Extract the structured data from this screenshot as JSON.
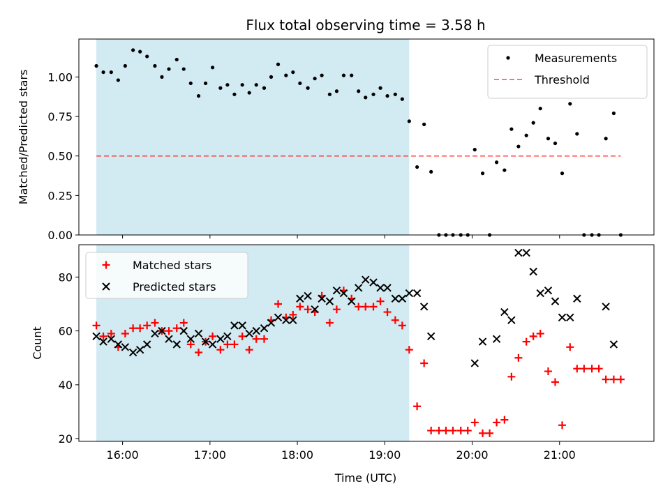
{
  "chart_data": [
    {
      "type": "scatter",
      "title": "Flux total observing time = 3.58 h",
      "xlabel": "",
      "ylabel": "Matched/Predicted stars",
      "xlim_hours": [
        15.5,
        22.08
      ],
      "ylim": [
        0,
        1.24
      ],
      "yticks": [
        0.0,
        0.25,
        0.5,
        0.75,
        1.0
      ],
      "ytick_labels": [
        "0.00",
        "0.25",
        "0.50",
        "0.75",
        "1.00"
      ],
      "shaded_span_hours": [
        15.7,
        19.28
      ],
      "shade_color": "#add8e6",
      "legend_position": "upper-right",
      "series": [
        {
          "name": "Measurements",
          "marker": "dot",
          "color": "#000000",
          "x_hours": [
            15.7,
            15.78,
            15.87,
            15.95,
            16.03,
            16.12,
            16.2,
            16.28,
            16.37,
            16.45,
            16.53,
            16.62,
            16.7,
            16.78,
            16.87,
            16.95,
            17.03,
            17.12,
            17.2,
            17.28,
            17.37,
            17.45,
            17.53,
            17.62,
            17.7,
            17.78,
            17.87,
            17.95,
            18.03,
            18.12,
            18.2,
            18.28,
            18.37,
            18.45,
            18.53,
            18.62,
            18.7,
            18.78,
            18.87,
            18.95,
            19.03,
            19.12,
            19.2,
            19.28,
            19.37,
            19.45,
            19.53,
            19.62,
            19.7,
            19.78,
            19.87,
            19.95,
            20.03,
            20.12,
            20.2,
            20.28,
            20.37,
            20.45,
            20.53,
            20.62,
            20.7,
            20.78,
            20.87,
            20.95,
            21.03,
            21.12,
            21.2,
            21.28,
            21.37,
            21.45,
            21.53,
            21.62,
            21.7
          ],
          "values": [
            1.07,
            1.03,
            1.03,
            0.98,
            1.07,
            1.17,
            1.16,
            1.13,
            1.07,
            1.0,
            1.05,
            1.11,
            1.05,
            0.96,
            0.88,
            0.96,
            1.06,
            0.93,
            0.95,
            0.89,
            0.95,
            0.9,
            0.95,
            0.93,
            1.0,
            1.08,
            1.01,
            1.03,
            0.96,
            0.93,
            0.99,
            1.01,
            0.89,
            0.91,
            1.01,
            1.01,
            0.91,
            0.87,
            0.89,
            0.93,
            0.88,
            0.89,
            0.86,
            0.72,
            0.43,
            0.7,
            0.4,
            0.0,
            0.0,
            0.0,
            0.0,
            0.0,
            0.54,
            0.39,
            0.0,
            0.46,
            0.41,
            0.67,
            0.56,
            0.63,
            0.71,
            0.8,
            0.61,
            0.58,
            0.39,
            0.83,
            0.64,
            0.0,
            0.0,
            0.0,
            0.61,
            0.77,
            0.0
          ]
        },
        {
          "name": "Threshold",
          "marker": "dashed-line",
          "color": "#ff0000",
          "x_hours": [
            15.7,
            21.7
          ],
          "values": [
            0.5,
            0.5
          ]
        }
      ]
    },
    {
      "type": "scatter",
      "title": "",
      "xlabel": "Time (UTC)",
      "ylabel": "Count",
      "xlim_hours": [
        15.5,
        22.08
      ],
      "xticks_hours": [
        16,
        17,
        18,
        19,
        20,
        21
      ],
      "xtick_labels": [
        "16:00",
        "17:00",
        "18:00",
        "19:00",
        "20:00",
        "21:00"
      ],
      "ylim": [
        19,
        92
      ],
      "yticks": [
        20,
        40,
        60,
        80
      ],
      "ytick_labels": [
        "20",
        "40",
        "60",
        "80"
      ],
      "shaded_span_hours": [
        15.7,
        19.28
      ],
      "shade_color": "#add8e6",
      "legend_position": "upper-left",
      "series": [
        {
          "name": "Matched stars",
          "marker": "plus",
          "color": "#ff0000",
          "x_hours": [
            15.7,
            15.78,
            15.87,
            15.95,
            16.03,
            16.12,
            16.2,
            16.28,
            16.37,
            16.45,
            16.53,
            16.62,
            16.7,
            16.78,
            16.87,
            16.95,
            17.03,
            17.12,
            17.2,
            17.28,
            17.37,
            17.45,
            17.53,
            17.62,
            17.7,
            17.78,
            17.87,
            17.95,
            18.03,
            18.12,
            18.2,
            18.28,
            18.37,
            18.45,
            18.53,
            18.62,
            18.7,
            18.78,
            18.87,
            18.95,
            19.03,
            19.12,
            19.2,
            19.28,
            19.37,
            19.45,
            19.53,
            19.62,
            19.7,
            19.78,
            19.87,
            19.95,
            20.03,
            20.12,
            20.2,
            20.28,
            20.37,
            20.45,
            20.53,
            20.62,
            20.7,
            20.78,
            20.87,
            20.95,
            21.03,
            21.12,
            21.2,
            21.28,
            21.37,
            21.45,
            21.53,
            21.62,
            21.7
          ],
          "values": [
            62,
            58,
            59,
            54,
            59,
            61,
            61,
            62,
            63,
            60,
            60,
            61,
            63,
            55,
            52,
            56,
            58,
            53,
            55,
            55,
            58,
            53,
            57,
            57,
            64,
            70,
            65,
            66,
            69,
            68,
            67,
            73,
            63,
            68,
            75,
            72,
            69,
            69,
            69,
            71,
            67,
            64,
            62,
            53,
            32,
            48,
            23,
            23,
            23,
            23,
            23,
            23,
            26,
            22,
            22,
            26,
            27,
            43,
            50,
            56,
            58,
            59,
            45,
            41,
            25,
            54,
            46,
            46,
            46,
            46,
            42,
            42,
            42
          ]
        },
        {
          "name": "Predicted stars",
          "marker": "x",
          "color": "#000000",
          "x_hours": [
            15.7,
            15.78,
            15.87,
            15.95,
            16.03,
            16.12,
            16.2,
            16.28,
            16.37,
            16.45,
            16.53,
            16.62,
            16.7,
            16.78,
            16.87,
            16.95,
            17.03,
            17.12,
            17.2,
            17.28,
            17.37,
            17.45,
            17.53,
            17.62,
            17.7,
            17.78,
            17.87,
            17.95,
            18.03,
            18.12,
            18.2,
            18.28,
            18.37,
            18.45,
            18.53,
            18.62,
            18.7,
            18.78,
            18.87,
            18.95,
            19.03,
            19.12,
            19.2,
            19.28,
            19.37,
            19.45,
            19.53,
            20.03,
            20.12,
            20.28,
            20.37,
            20.45,
            20.53,
            20.62,
            20.7,
            20.78,
            20.87,
            20.95,
            21.03,
            21.12,
            21.2,
            21.53,
            21.62
          ],
          "values": [
            58,
            56,
            57,
            55,
            54,
            52,
            53,
            55,
            59,
            60,
            57,
            55,
            60,
            57,
            59,
            56,
            55,
            57,
            58,
            62,
            62,
            59,
            60,
            61,
            63,
            65,
            64,
            64,
            72,
            73,
            68,
            72,
            71,
            75,
            74,
            71,
            76,
            79,
            78,
            76,
            76,
            72,
            72,
            74,
            74,
            69,
            58,
            48,
            56,
            57,
            67,
            64,
            89,
            89,
            82,
            74,
            75,
            71,
            65,
            65,
            72,
            69,
            55
          ]
        }
      ]
    }
  ]
}
